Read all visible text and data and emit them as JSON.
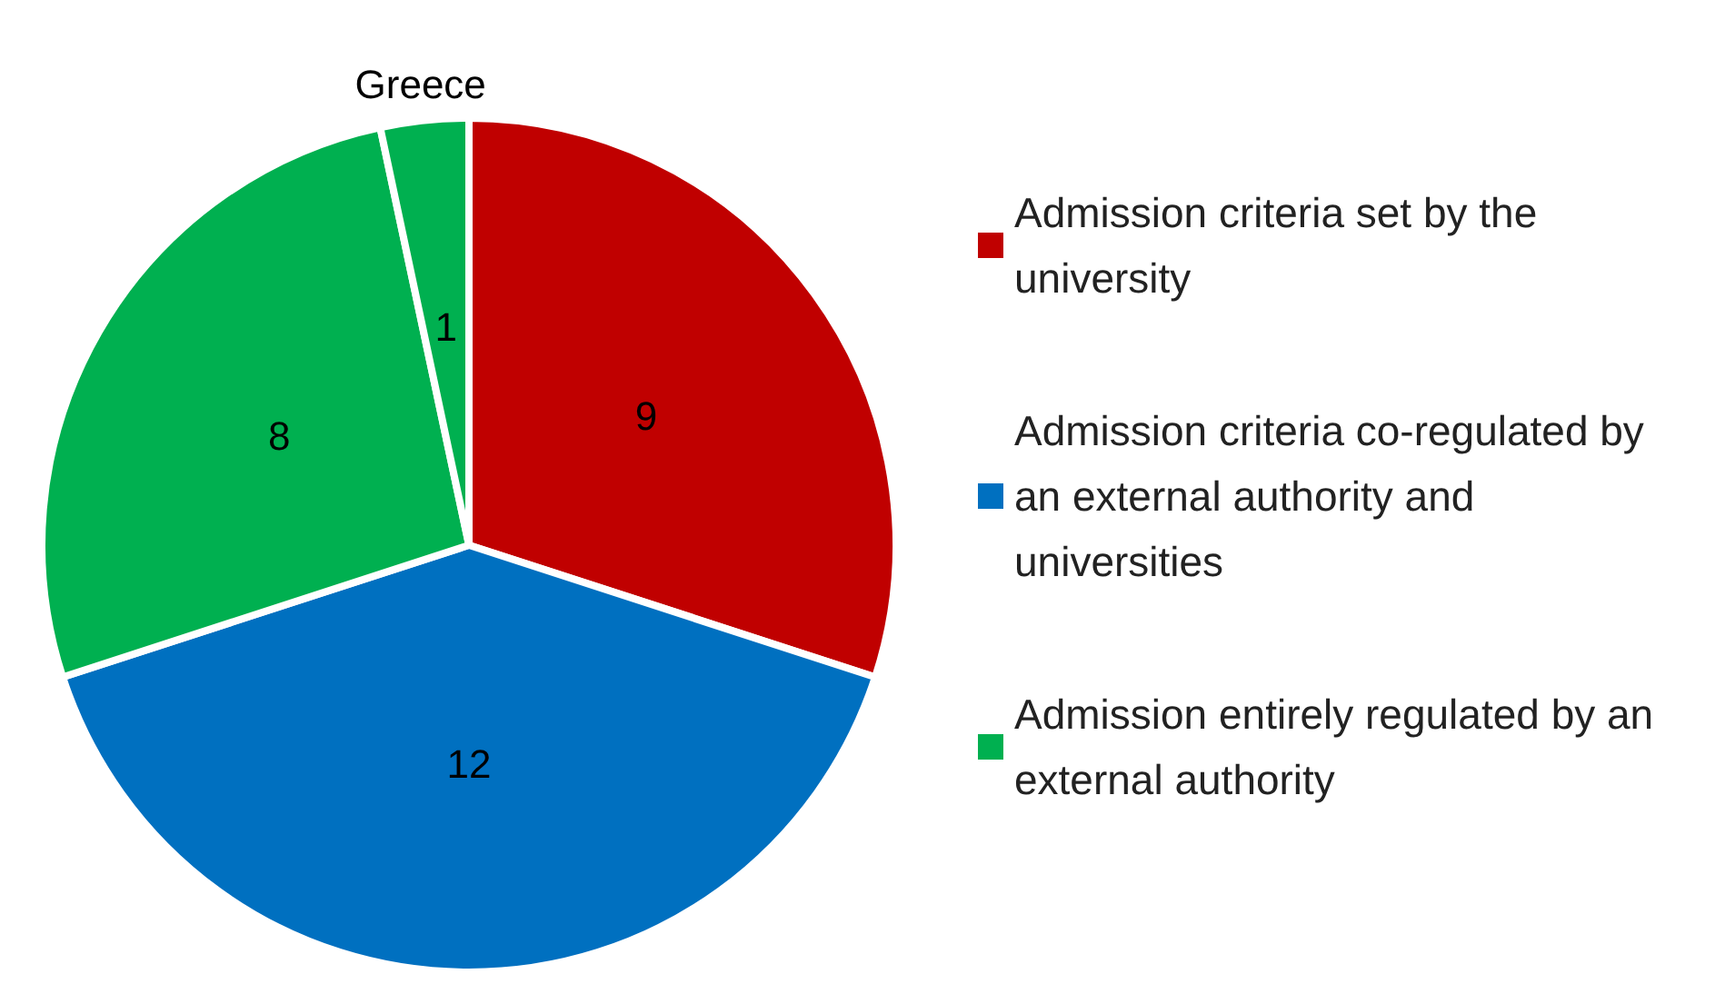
{
  "chart_data": {
    "type": "pie",
    "categories": [
      "Admission criteria set by the university",
      "Admission criteria co-regulated by an external authority and universities",
      "Admission entirely regulated by an external authority",
      "Greece"
    ],
    "values": [
      9,
      12,
      8,
      1
    ],
    "colors": [
      "#c00000",
      "#0070c0",
      "#00b050",
      "#00b050"
    ],
    "data_labels": true,
    "legend": "right"
  }
}
